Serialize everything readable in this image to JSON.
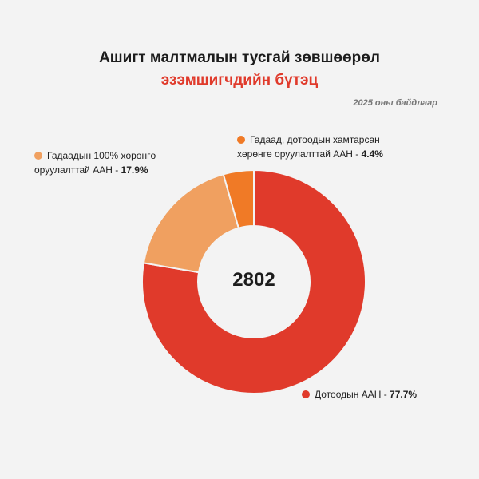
{
  "title": {
    "line1": "Ашигт малтмалын тусгай зөвшөөрөл",
    "line2": "эзэмшигчдийн бүтэц"
  },
  "note": "2025 оны байдлаар",
  "chart_data": {
    "type": "pie",
    "donut": true,
    "total": "2802",
    "slices": [
      {
        "label": "Дотоодын ААН",
        "value": 77.7,
        "value_text": "77.7%",
        "color": "#e03a2b"
      },
      {
        "label": "Гадаадын 100% хөрөнгө оруулалттай ААН",
        "value": 17.9,
        "value_text": "17.9%",
        "color": "#f0a060"
      },
      {
        "label": "Гадаад, дотоодын хамтарсан хөрөнгө оруулалттай ААН",
        "value": 4.4,
        "value_text": "4.4%",
        "color": "#f07a26"
      }
    ]
  },
  "legend": {
    "foreign": {
      "line1": "Гадаадын 100% хөрөнгө",
      "line2": "оруулалттай ААН - ",
      "value": "17.9%"
    },
    "joint": {
      "line1": "Гадаад, дотоодын хамтарсан",
      "line2": "хөрөнгө оруулалттай ААН - ",
      "value": "4.4%"
    },
    "domestic": {
      "line1": "Дотоодын ААН - ",
      "value": "77.7%"
    }
  },
  "colors": {
    "background": "#f3f3f3",
    "accent": "#e03a2b",
    "domestic": "#e03a2b",
    "foreign": "#f0a060",
    "joint": "#f07a26"
  }
}
